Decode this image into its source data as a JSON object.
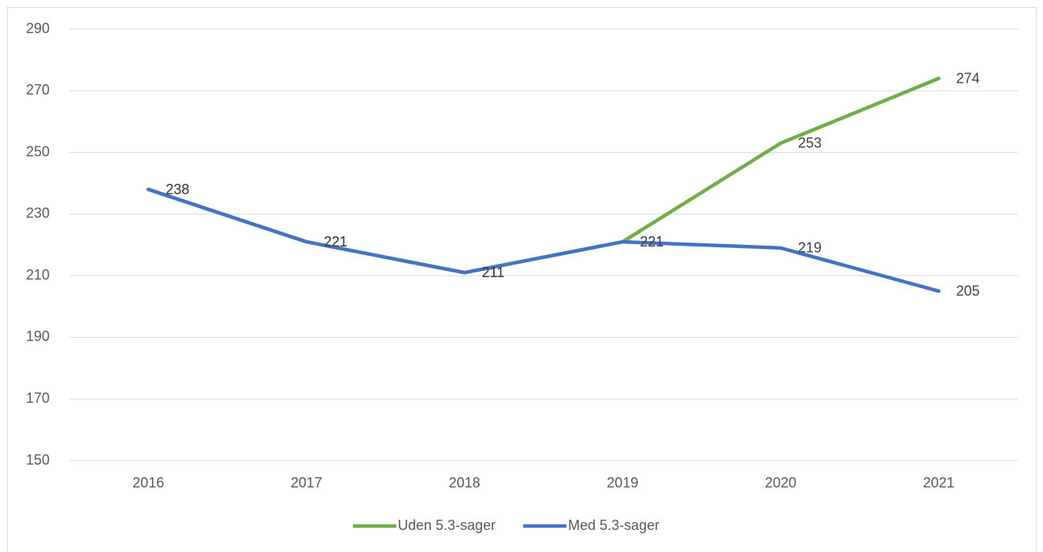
{
  "chart_data": {
    "type": "line",
    "categories": [
      "2016",
      "2017",
      "2018",
      "2019",
      "2020",
      "2021"
    ],
    "series": [
      {
        "name": "Uden 5.3-sager",
        "color": "#70ad47",
        "values": [
          238,
          221,
          211,
          221,
          253,
          274
        ]
      },
      {
        "name": "Med 5.3-sager",
        "color": "#4472c4",
        "values": [
          238,
          221,
          211,
          221,
          219,
          205
        ]
      }
    ],
    "ylim": [
      150,
      290
    ],
    "yticks": [
      150,
      170,
      190,
      210,
      230,
      250,
      270,
      290
    ],
    "grid": true,
    "legend": "bottom"
  }
}
